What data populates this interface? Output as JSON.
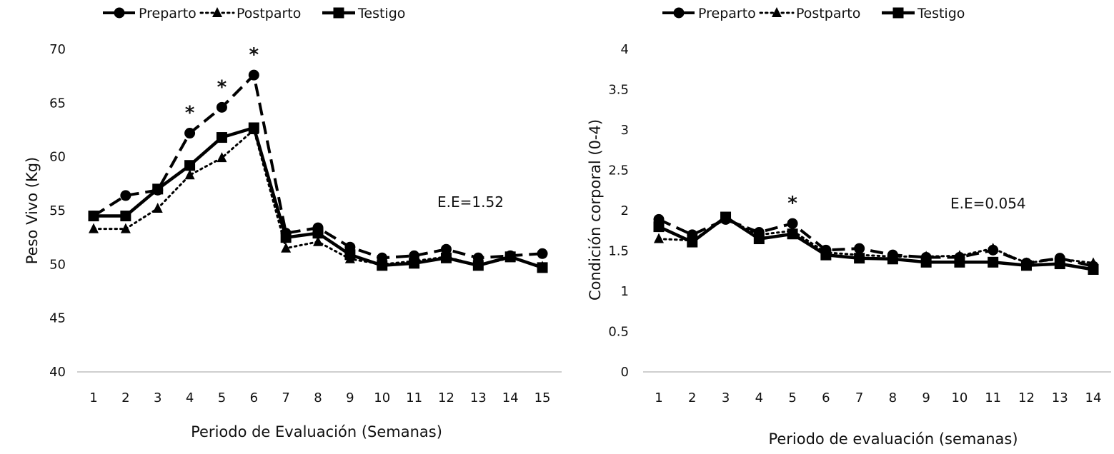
{
  "chart_data": [
    {
      "type": "line",
      "ylabel": "Peso Vivo (Kg)",
      "xlabel": "Periodo de Evaluación (Semanas)",
      "ylim": [
        40,
        70
      ],
      "yticks": [
        "40",
        "45",
        "50",
        "55",
        "60",
        "65",
        "70"
      ],
      "categories": [
        "1",
        "2",
        "3",
        "4",
        "5",
        "6",
        "7",
        "8",
        "9",
        "10",
        "11",
        "12",
        "13",
        "14",
        "15"
      ],
      "annotation": "E.E=1.52",
      "significance_marker": "*",
      "significant_weeks": [
        "4",
        "5",
        "6"
      ],
      "legend": [
        "Preparto",
        "Postparto",
        "Testigo"
      ],
      "series": [
        {
          "name": "Preparto",
          "style": "dashed",
          "marker": "circle",
          "values": [
            54.5,
            56.4,
            56.9,
            62.2,
            64.6,
            67.6,
            52.9,
            53.4,
            51.6,
            50.6,
            50.8,
            51.4,
            50.6,
            50.8,
            51.0
          ]
        },
        {
          "name": "Postparto",
          "style": "dotted",
          "marker": "triangle",
          "values": [
            53.3,
            53.3,
            55.2,
            58.3,
            59.9,
            62.5,
            51.5,
            52.1,
            50.5,
            50.0,
            50.3,
            50.7,
            49.9,
            50.6,
            49.8
          ]
        },
        {
          "name": "Testigo",
          "style": "solid",
          "marker": "square",
          "values": [
            54.5,
            54.5,
            57.0,
            59.2,
            61.8,
            62.7,
            52.5,
            52.9,
            50.9,
            49.9,
            50.1,
            50.6,
            49.9,
            50.7,
            49.7
          ]
        }
      ]
    },
    {
      "type": "line",
      "ylabel": "Condición corporal (0-4)",
      "xlabel": "Periodo de evaluación (semanas)",
      "ylim": [
        0,
        4
      ],
      "yticks": [
        "0",
        "0.5",
        "1",
        "1.5",
        "2",
        "2.5",
        "3",
        "3.5",
        "4"
      ],
      "categories": [
        "1",
        "2",
        "3",
        "4",
        "5",
        "6",
        "7",
        "8",
        "9",
        "10",
        "11",
        "12",
        "13",
        "14"
      ],
      "annotation": "E.E=0.054",
      "significance_marker": "*",
      "significant_weeks": [
        "5"
      ],
      "legend": [
        "Preparto",
        "Postparto",
        "Testigo"
      ],
      "series": [
        {
          "name": "Preparto",
          "style": "dashed",
          "marker": "circle",
          "values": [
            1.89,
            1.7,
            1.89,
            1.73,
            1.84,
            1.51,
            1.53,
            1.45,
            1.42,
            1.42,
            1.51,
            1.35,
            1.41,
            1.31
          ]
        },
        {
          "name": "Postparto",
          "style": "dotted",
          "marker": "triangle",
          "values": [
            1.65,
            1.63,
            1.9,
            1.7,
            1.75,
            1.48,
            1.45,
            1.43,
            1.43,
            1.44,
            1.53,
            1.35,
            1.4,
            1.35
          ]
        },
        {
          "name": "Testigo",
          "style": "solid",
          "marker": "square",
          "values": [
            1.8,
            1.61,
            1.92,
            1.65,
            1.71,
            1.45,
            1.41,
            1.4,
            1.36,
            1.36,
            1.36,
            1.32,
            1.34,
            1.27
          ]
        }
      ]
    }
  ]
}
